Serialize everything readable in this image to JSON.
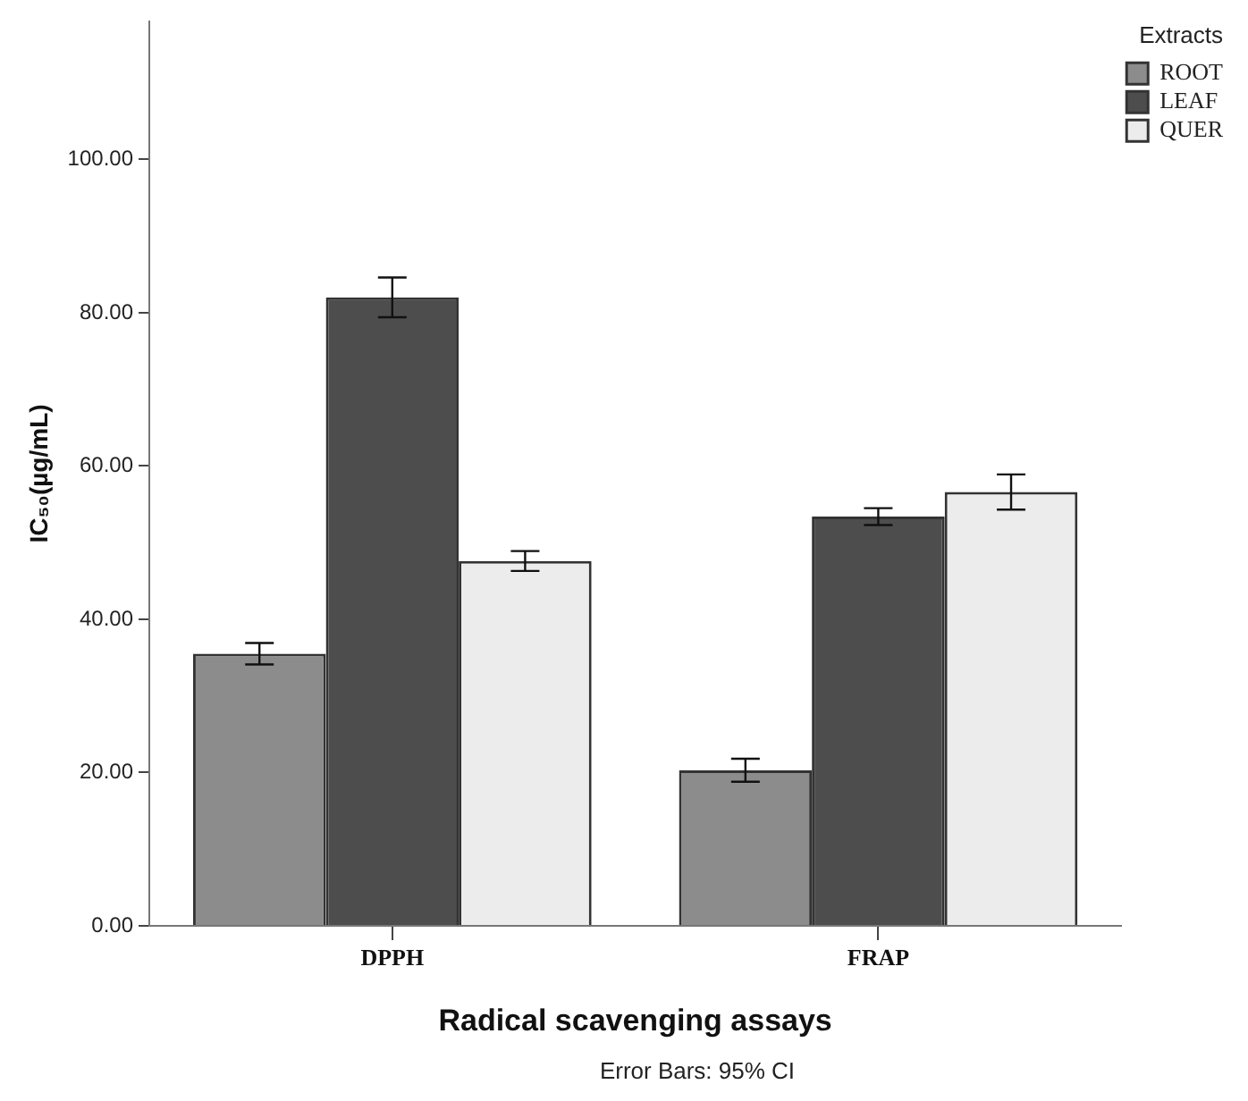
{
  "chart_data": {
    "type": "bar",
    "categories": [
      "DPPH",
      "FRAP"
    ],
    "xlabel": "Radical scavenging assays",
    "ylabel": "IC₅₀(µg/mL)",
    "legend_title": "Extracts",
    "series": [
      {
        "name": "ROOT",
        "color": "#8c8c8c",
        "values": [
          35.5,
          20.3
        ],
        "errors": [
          1.4,
          1.5
        ]
      },
      {
        "name": "LEAF",
        "color": "#4d4d4d",
        "values": [
          82.0,
          53.4
        ],
        "errors": [
          2.6,
          1.1
        ]
      },
      {
        "name": "QUER",
        "color": "#ececec",
        "values": [
          47.6,
          56.6
        ],
        "errors": [
          1.3,
          2.3
        ]
      }
    ],
    "ylim": [
      0,
      118
    ],
    "yticks": [
      {
        "value": 0,
        "label": "0.00"
      },
      {
        "value": 20,
        "label": "20.00"
      },
      {
        "value": 40,
        "label": "40.00"
      },
      {
        "value": 60,
        "label": "60.00"
      },
      {
        "value": 80,
        "label": "80.00"
      },
      {
        "value": 100,
        "label": "100.00"
      }
    ],
    "grid": false,
    "legend": "top right",
    "annotations": [
      "Error Bars: 95% CI"
    ]
  }
}
